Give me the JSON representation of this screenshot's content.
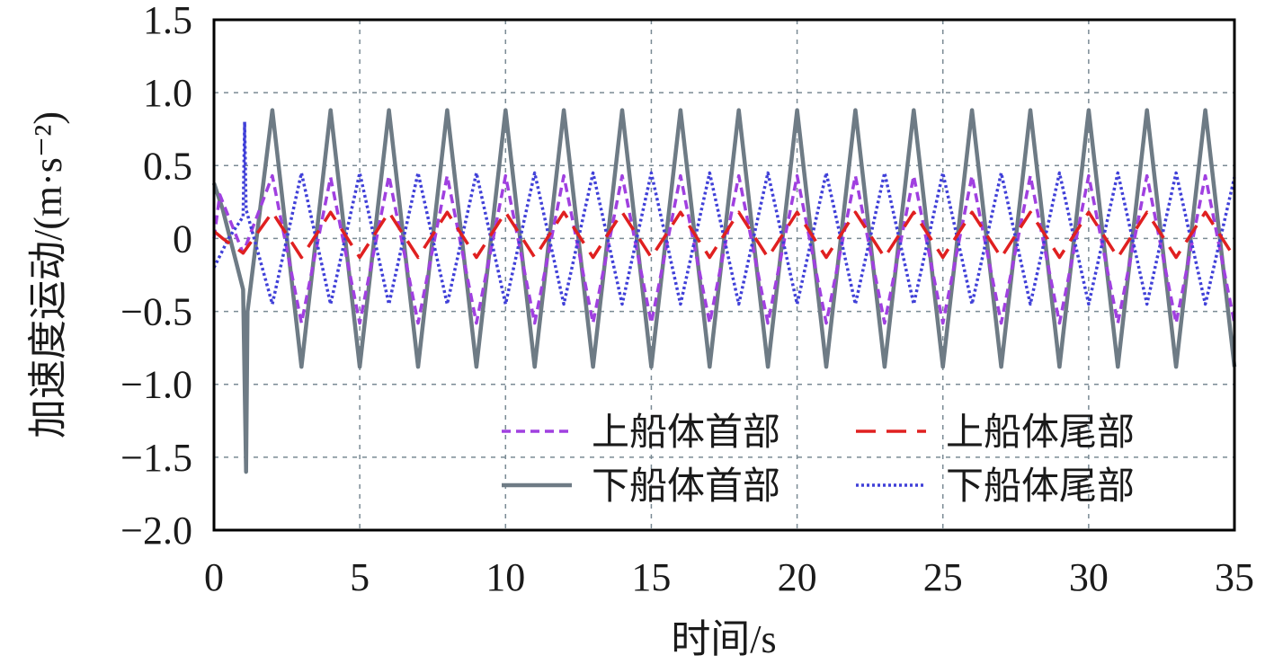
{
  "chart_data": {
    "type": "line",
    "xlabel": "时间/s",
    "ylabel": "加速度运动/(m·s⁻²)",
    "xlim": [
      0,
      35
    ],
    "ylim": [
      -2.0,
      1.5
    ],
    "x_ticks": [
      "0",
      "5",
      "10",
      "15",
      "20",
      "25",
      "30",
      "35"
    ],
    "y_ticks": [
      "1.5",
      "1.0",
      "0.5",
      "0",
      "−0.5",
      "−1.0",
      "−1.5",
      "−2.0"
    ],
    "grid": true,
    "legend_position": "lower-right",
    "series": [
      {
        "name": "上船体首部",
        "color": "#a040e0",
        "dash": "short-dash",
        "x": [
          0,
          0.2,
          1.0,
          2.0,
          3.0,
          4.0,
          5.0,
          6.0,
          7.0,
          8.0,
          9.0,
          10.0,
          11.0,
          12.0,
          13.0,
          14.0,
          15.0,
          16.0,
          17.0,
          18.0,
          19.0,
          20.0,
          21.0,
          22.0,
          23.0,
          24.0,
          25.0,
          26.0,
          27.0,
          28.0,
          29.0,
          30.0,
          31.0,
          32.0,
          33.0,
          34.0,
          35.0
        ],
        "values": [
          0.0,
          0.3,
          -0.1,
          0.43,
          -0.58,
          0.42,
          -0.58,
          0.43,
          -0.58,
          0.43,
          -0.58,
          0.43,
          -0.58,
          0.43,
          -0.58,
          0.43,
          -0.58,
          0.43,
          -0.58,
          0.43,
          -0.58,
          0.43,
          -0.58,
          0.43,
          -0.58,
          0.43,
          -0.58,
          0.43,
          -0.58,
          0.43,
          -0.58,
          0.43,
          -0.58,
          0.43,
          -0.58,
          0.43,
          -0.58
        ]
      },
      {
        "name": "上船体尾部",
        "color": "#e02020",
        "dash": "long-dash",
        "x": [
          0,
          0.3,
          1.0,
          2.0,
          3.0,
          4.0,
          5.0,
          6.0,
          7.0,
          8.0,
          9.0,
          10.0,
          11.0,
          12.0,
          13.0,
          14.0,
          15.0,
          16.0,
          17.0,
          18.0,
          19.0,
          20.0,
          21.0,
          22.0,
          23.0,
          24.0,
          25.0,
          26.0,
          27.0,
          28.0,
          29.0,
          30.0,
          31.0,
          32.0,
          33.0,
          34.0,
          35.0
        ],
        "values": [
          0.05,
          0.0,
          -0.1,
          0.18,
          -0.13,
          0.18,
          -0.13,
          0.18,
          -0.13,
          0.18,
          -0.13,
          0.18,
          -0.13,
          0.18,
          -0.13,
          0.18,
          -0.13,
          0.18,
          -0.13,
          0.18,
          -0.13,
          0.18,
          -0.13,
          0.18,
          -0.13,
          0.18,
          -0.13,
          0.18,
          -0.13,
          0.18,
          -0.13,
          0.18,
          -0.13,
          0.18,
          -0.13,
          0.18,
          -0.13
        ]
      },
      {
        "name": "下船体首部",
        "color": "#6e7b85",
        "dash": "solid",
        "x": [
          0,
          0.3,
          1.0,
          1.1,
          1.15,
          2.0,
          3.0,
          4.0,
          5.0,
          6.0,
          7.0,
          8.0,
          9.0,
          10.0,
          11.0,
          12.0,
          13.0,
          14.0,
          15.0,
          16.0,
          17.0,
          18.0,
          19.0,
          20.0,
          21.0,
          22.0,
          23.0,
          24.0,
          25.0,
          26.0,
          27.0,
          28.0,
          29.0,
          30.0,
          31.0,
          32.0,
          33.0,
          34.0,
          35.0
        ],
        "values": [
          0.38,
          0.2,
          -0.35,
          -1.6,
          -0.5,
          0.88,
          -0.88,
          0.88,
          -0.88,
          0.88,
          -0.88,
          0.88,
          -0.88,
          0.88,
          -0.88,
          0.88,
          -0.88,
          0.88,
          -0.88,
          0.88,
          -0.88,
          0.88,
          -0.88,
          0.88,
          -0.88,
          0.88,
          -0.88,
          0.88,
          -0.88,
          0.88,
          -0.88,
          0.88,
          -0.88,
          0.88,
          -0.88,
          0.88,
          -0.88,
          0.88,
          -0.88
        ]
      },
      {
        "name": "下船体尾部",
        "color": "#4040d8",
        "dash": "dotted",
        "x": [
          0,
          0.5,
          1.0,
          1.05,
          1.1,
          2.0,
          3.0,
          4.0,
          5.0,
          6.0,
          7.0,
          8.0,
          9.0,
          10.0,
          11.0,
          12.0,
          13.0,
          14.0,
          15.0,
          16.0,
          17.0,
          18.0,
          19.0,
          20.0,
          21.0,
          22.0,
          23.0,
          24.0,
          25.0,
          26.0,
          27.0,
          28.0,
          29.0,
          30.0,
          31.0,
          32.0,
          33.0,
          34.0,
          35.0
        ],
        "values": [
          -0.2,
          0.0,
          0.15,
          0.8,
          0.2,
          -0.45,
          0.45,
          -0.45,
          0.45,
          -0.45,
          0.45,
          -0.45,
          0.45,
          -0.45,
          0.45,
          -0.45,
          0.45,
          -0.45,
          0.45,
          -0.45,
          0.45,
          -0.45,
          0.45,
          -0.45,
          0.45,
          -0.45,
          0.45,
          -0.45,
          0.45,
          -0.45,
          0.45,
          -0.45,
          0.45,
          -0.45,
          0.45,
          -0.45,
          0.45,
          -0.45,
          0.42
        ]
      }
    ]
  }
}
